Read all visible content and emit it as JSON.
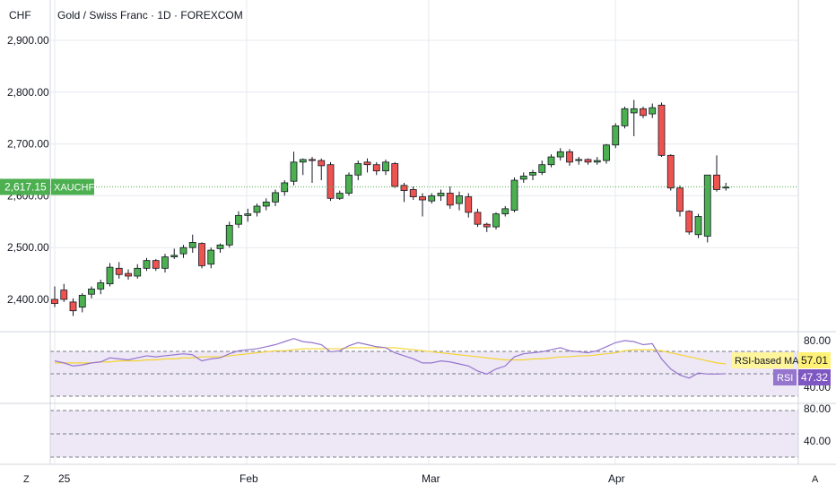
{
  "header": {
    "currency": "CHF",
    "title": "Gold / Swiss Franc · 1D · FOREXCOM"
  },
  "price_tag": {
    "value": "2,617.15",
    "symbol": "XAUCHF",
    "color": "#4caf50"
  },
  "rsi_tags": {
    "ma_label": "RSI-based MA",
    "ma_value": "57.01",
    "ma_color": "#f5e43a",
    "rsi_label": "RSI",
    "rsi_value": "47.32",
    "rsi_color": "#7e57c2"
  },
  "footer": {
    "left_button": "Z",
    "right_button": "A",
    "x_ticks": [
      "25",
      "Feb",
      "Mar",
      "Apr"
    ]
  },
  "colors": {
    "up": "#4caf50",
    "down": "#ef5350",
    "rsi_line": "#9575cd",
    "rsi_ma": "#f5d430",
    "rsi_band": "#ede7f6",
    "grid": "#e6e9ef",
    "axis_text": "#131722"
  },
  "chart_data": [
    {
      "type": "candlestick",
      "title": "Gold / Swiss Franc · 1D · FOREXCOM",
      "ylabel": "CHF",
      "ylim": [
        2350,
        2930
      ],
      "yticks": [
        2400,
        2500,
        2600,
        2700,
        2800,
        2900
      ],
      "ytick_labels": [
        "2,400.00",
        "2,500.00",
        "2,600.00",
        "2,700.00",
        "2,800.00",
        "2,900.00"
      ],
      "last_price": 2617.15,
      "series": [
        {
          "name": "XAUCHF",
          "ohlc": [
            [
              2400,
              2425,
              2385,
              2392
            ],
            [
              2418,
              2430,
              2395,
              2400
            ],
            [
              2395,
              2402,
              2368,
              2378
            ],
            [
              2385,
              2412,
              2375,
              2408
            ],
            [
              2410,
              2425,
              2402,
              2420
            ],
            [
              2420,
              2438,
              2410,
              2432
            ],
            [
              2430,
              2470,
              2425,
              2462
            ],
            [
              2460,
              2472,
              2440,
              2448
            ],
            [
              2450,
              2458,
              2438,
              2445
            ],
            [
              2445,
              2468,
              2440,
              2460
            ],
            [
              2460,
              2480,
              2455,
              2475
            ],
            [
              2475,
              2478,
              2455,
              2460
            ],
            [
              2460,
              2488,
              2452,
              2482
            ],
            [
              2482,
              2498,
              2478,
              2485
            ],
            [
              2488,
              2505,
              2480,
              2500
            ],
            [
              2500,
              2525,
              2490,
              2510
            ],
            [
              2508,
              2510,
              2460,
              2465
            ],
            [
              2468,
              2500,
              2460,
              2495
            ],
            [
              2498,
              2508,
              2490,
              2505
            ],
            [
              2505,
              2550,
              2500,
              2543
            ],
            [
              2545,
              2570,
              2538,
              2562
            ],
            [
              2562,
              2575,
              2550,
              2565
            ],
            [
              2568,
              2585,
              2560,
              2580
            ],
            [
              2580,
              2595,
              2572,
              2588
            ],
            [
              2588,
              2612,
              2580,
              2606
            ],
            [
              2608,
              2630,
              2600,
              2625
            ],
            [
              2628,
              2685,
              2620,
              2665
            ],
            [
              2665,
              2672,
              2640,
              2670
            ],
            [
              2670,
              2675,
              2625,
              2668
            ],
            [
              2668,
              2672,
              2630,
              2658
            ],
            [
              2660,
              2665,
              2590,
              2595
            ],
            [
              2595,
              2610,
              2592,
              2605
            ],
            [
              2605,
              2645,
              2600,
              2640
            ],
            [
              2640,
              2668,
              2630,
              2662
            ],
            [
              2665,
              2672,
              2645,
              2660
            ],
            [
              2660,
              2665,
              2640,
              2648
            ],
            [
              2648,
              2670,
              2640,
              2665
            ],
            [
              2662,
              2665,
              2615,
              2618
            ],
            [
              2620,
              2625,
              2588,
              2610
            ],
            [
              2612,
              2618,
              2592,
              2598
            ],
            [
              2598,
              2605,
              2560,
              2592
            ],
            [
              2590,
              2605,
              2585,
              2600
            ],
            [
              2600,
              2612,
              2590,
              2605
            ],
            [
              2605,
              2618,
              2575,
              2582
            ],
            [
              2585,
              2608,
              2572,
              2600
            ],
            [
              2598,
              2605,
              2558,
              2568
            ],
            [
              2568,
              2575,
              2540,
              2545
            ],
            [
              2545,
              2548,
              2530,
              2540
            ],
            [
              2540,
              2568,
              2535,
              2565
            ],
            [
              2565,
              2580,
              2560,
              2575
            ],
            [
              2572,
              2635,
              2568,
              2630
            ],
            [
              2632,
              2645,
              2625,
              2638
            ],
            [
              2640,
              2650,
              2630,
              2645
            ],
            [
              2645,
              2668,
              2640,
              2660
            ],
            [
              2660,
              2680,
              2655,
              2675
            ],
            [
              2675,
              2692,
              2668,
              2685
            ],
            [
              2685,
              2690,
              2658,
              2665
            ],
            [
              2668,
              2675,
              2660,
              2670
            ],
            [
              2670,
              2672,
              2660,
              2665
            ],
            [
              2665,
              2675,
              2660,
              2668
            ],
            [
              2668,
              2700,
              2662,
              2698
            ],
            [
              2698,
              2740,
              2692,
              2735
            ],
            [
              2735,
              2772,
              2730,
              2768
            ],
            [
              2760,
              2785,
              2715,
              2768
            ],
            [
              2768,
              2772,
              2750,
              2755
            ],
            [
              2758,
              2778,
              2750,
              2770
            ],
            [
              2775,
              2780,
              2675,
              2678
            ],
            [
              2678,
              2680,
              2610,
              2615
            ],
            [
              2615,
              2620,
              2560,
              2570
            ],
            [
              2570,
              2572,
              2525,
              2530
            ],
            [
              2525,
              2565,
              2518,
              2560
            ],
            [
              2522,
              2640,
              2510,
              2640
            ],
            [
              2640,
              2678,
              2608,
              2612
            ],
            [
              2615,
              2625,
              2610,
              2617
            ]
          ]
        }
      ]
    },
    {
      "type": "line",
      "title": "RSI",
      "ylim": [
        20,
        90
      ],
      "yticks": [
        40,
        80
      ],
      "ytick_labels": [
        "40.00",
        "80.00"
      ],
      "bands": [
        30,
        70
      ],
      "series": [
        {
          "name": "RSI",
          "values": [
            60,
            58,
            55,
            56,
            58,
            59,
            63,
            62,
            61,
            63,
            65,
            64,
            65,
            66,
            67,
            66,
            60,
            62,
            63,
            67,
            70,
            71,
            72,
            74,
            76,
            79,
            82,
            79,
            78,
            76,
            69,
            70,
            75,
            78,
            76,
            74,
            73,
            68,
            65,
            62,
            58,
            58,
            60,
            59,
            57,
            55,
            50,
            47,
            52,
            55,
            64,
            67,
            68,
            69,
            71,
            73,
            70,
            69,
            68,
            70,
            74,
            78,
            80,
            79,
            76,
            77,
            62,
            52,
            46,
            43,
            48,
            47,
            47,
            47.32
          ]
        },
        {
          "name": "RSI-based MA",
          "values": [
            58,
            58,
            58,
            58,
            58,
            59,
            59,
            60,
            60,
            60,
            61,
            61,
            62,
            62,
            63,
            63,
            64,
            64,
            64,
            65,
            66,
            67,
            68,
            69,
            70,
            70,
            71,
            72,
            72,
            72,
            72,
            72,
            73,
            73,
            73,
            73,
            73,
            73,
            72,
            71,
            70,
            69,
            68,
            67,
            66,
            65,
            64,
            63,
            62,
            61,
            61,
            61,
            62,
            62,
            63,
            64,
            64,
            65,
            65,
            66,
            67,
            68,
            70,
            71,
            71,
            71,
            70,
            68,
            66,
            64,
            62,
            60,
            58,
            57.01
          ]
        }
      ],
      "last_values": {
        "RSI": 47.32,
        "RSI-based MA": 57.01
      }
    },
    {
      "type": "line",
      "title": "",
      "ylim": [
        20,
        90
      ],
      "yticks": [
        40,
        80
      ],
      "ytick_labels": [
        "40.00",
        "80.00"
      ],
      "bands": [
        30,
        70
      ],
      "series": []
    }
  ]
}
